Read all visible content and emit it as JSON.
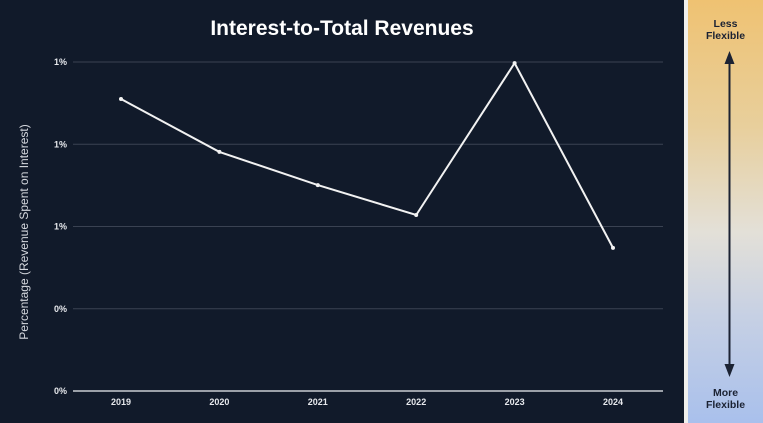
{
  "chart_data": {
    "type": "line",
    "title": "Interest-to-Total Revenues",
    "xlabel": "",
    "ylabel": "Percentage (Revenue Spent on Interest)",
    "categories": [
      "2019",
      "2020",
      "2021",
      "2022",
      "2023",
      "2024"
    ],
    "series": [
      {
        "name": "Interest-to-Total Revenues",
        "values": [
          1.065,
          0.872,
          0.751,
          0.642,
          1.196,
          0.522
        ]
      }
    ],
    "ylim": [
      0,
      1.2
    ],
    "yticks": [
      0,
      0.3,
      0.6,
      0.9,
      1.2
    ],
    "ytick_labels": [
      "0%",
      "0%",
      "1%",
      "1%",
      "1%"
    ],
    "grid": true,
    "line_color": "#f2f2f2",
    "background": "#111a2a"
  },
  "scale": {
    "top_label": "Less Flexible",
    "bottom_label": "More Flexible",
    "top_color": "#efc272",
    "bottom_color": "#a9c0ec"
  }
}
